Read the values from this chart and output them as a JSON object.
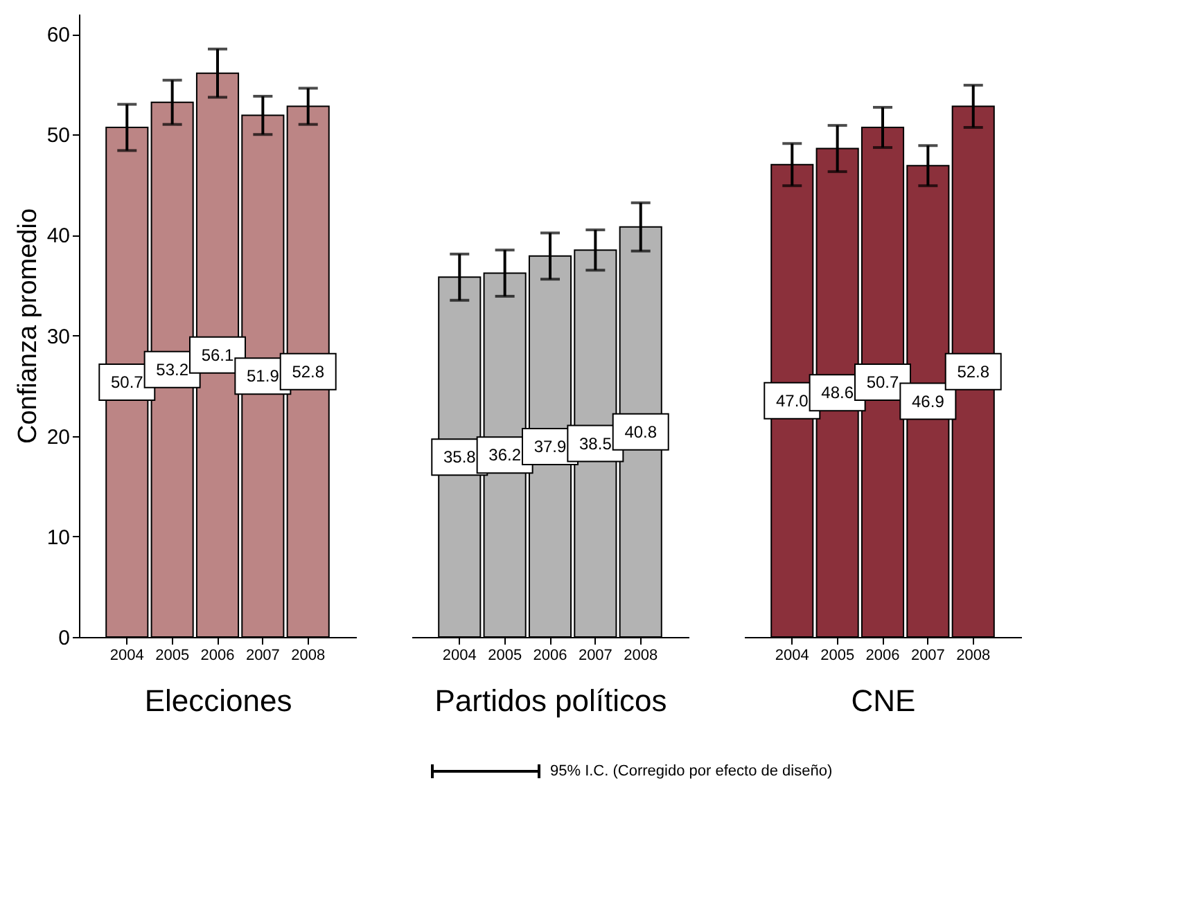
{
  "chart_data": [
    {
      "type": "bar",
      "xlabel": "Elecciones",
      "ylabel": "Confianza promedio",
      "categories": [
        "2004",
        "2005",
        "2006",
        "2007",
        "2008"
      ],
      "values": [
        50.7,
        53.2,
        56.1,
        51.9,
        52.8
      ],
      "value_labels": [
        "50.7",
        "53.2",
        "56.1",
        "51.9",
        "52.8"
      ],
      "errors": [
        2.3,
        2.2,
        2.4,
        1.9,
        1.8
      ],
      "color": "#bc8585",
      "ylim": [
        0,
        62
      ],
      "yticks": [
        0,
        10,
        20,
        30,
        40,
        50,
        60
      ],
      "grid": false
    },
    {
      "type": "bar",
      "xlabel": "Partidos políticos",
      "categories": [
        "2004",
        "2005",
        "2006",
        "2007",
        "2008"
      ],
      "values": [
        35.8,
        36.2,
        37.9,
        38.5,
        40.8
      ],
      "value_labels": [
        "35.8",
        "36.2",
        "37.9",
        "38.5",
        "40.8"
      ],
      "errors": [
        2.3,
        2.3,
        2.3,
        2.0,
        2.4
      ],
      "color": "#b3b3b3",
      "ylim": [
        0,
        60
      ],
      "yticks": [
        0,
        10,
        20,
        30,
        40,
        50,
        60
      ],
      "grid": false,
      "tick_labels": "x",
      "annotations": [
        "95% I.C. (Corregido por efecto de diseño)"
      ]
    },
    {
      "type": "bar",
      "xlabel": "CNE",
      "categories": [
        "2004",
        "2005",
        "2006",
        "2007",
        "2008"
      ],
      "values": [
        47.0,
        48.6,
        50.7,
        46.9,
        52.8
      ],
      "value_labels": [
        "47.0",
        "48.6",
        "50.7",
        "46.9",
        "52.8"
      ],
      "errors": [
        2.1,
        2.3,
        2.0,
        2.0,
        2.1
      ],
      "color": "#8b303b",
      "ylim": [
        0,
        60
      ],
      "yticks": [
        0,
        10,
        20,
        30,
        40,
        50,
        60
      ],
      "grid": false,
      "tick_labels": "x"
    }
  ]
}
